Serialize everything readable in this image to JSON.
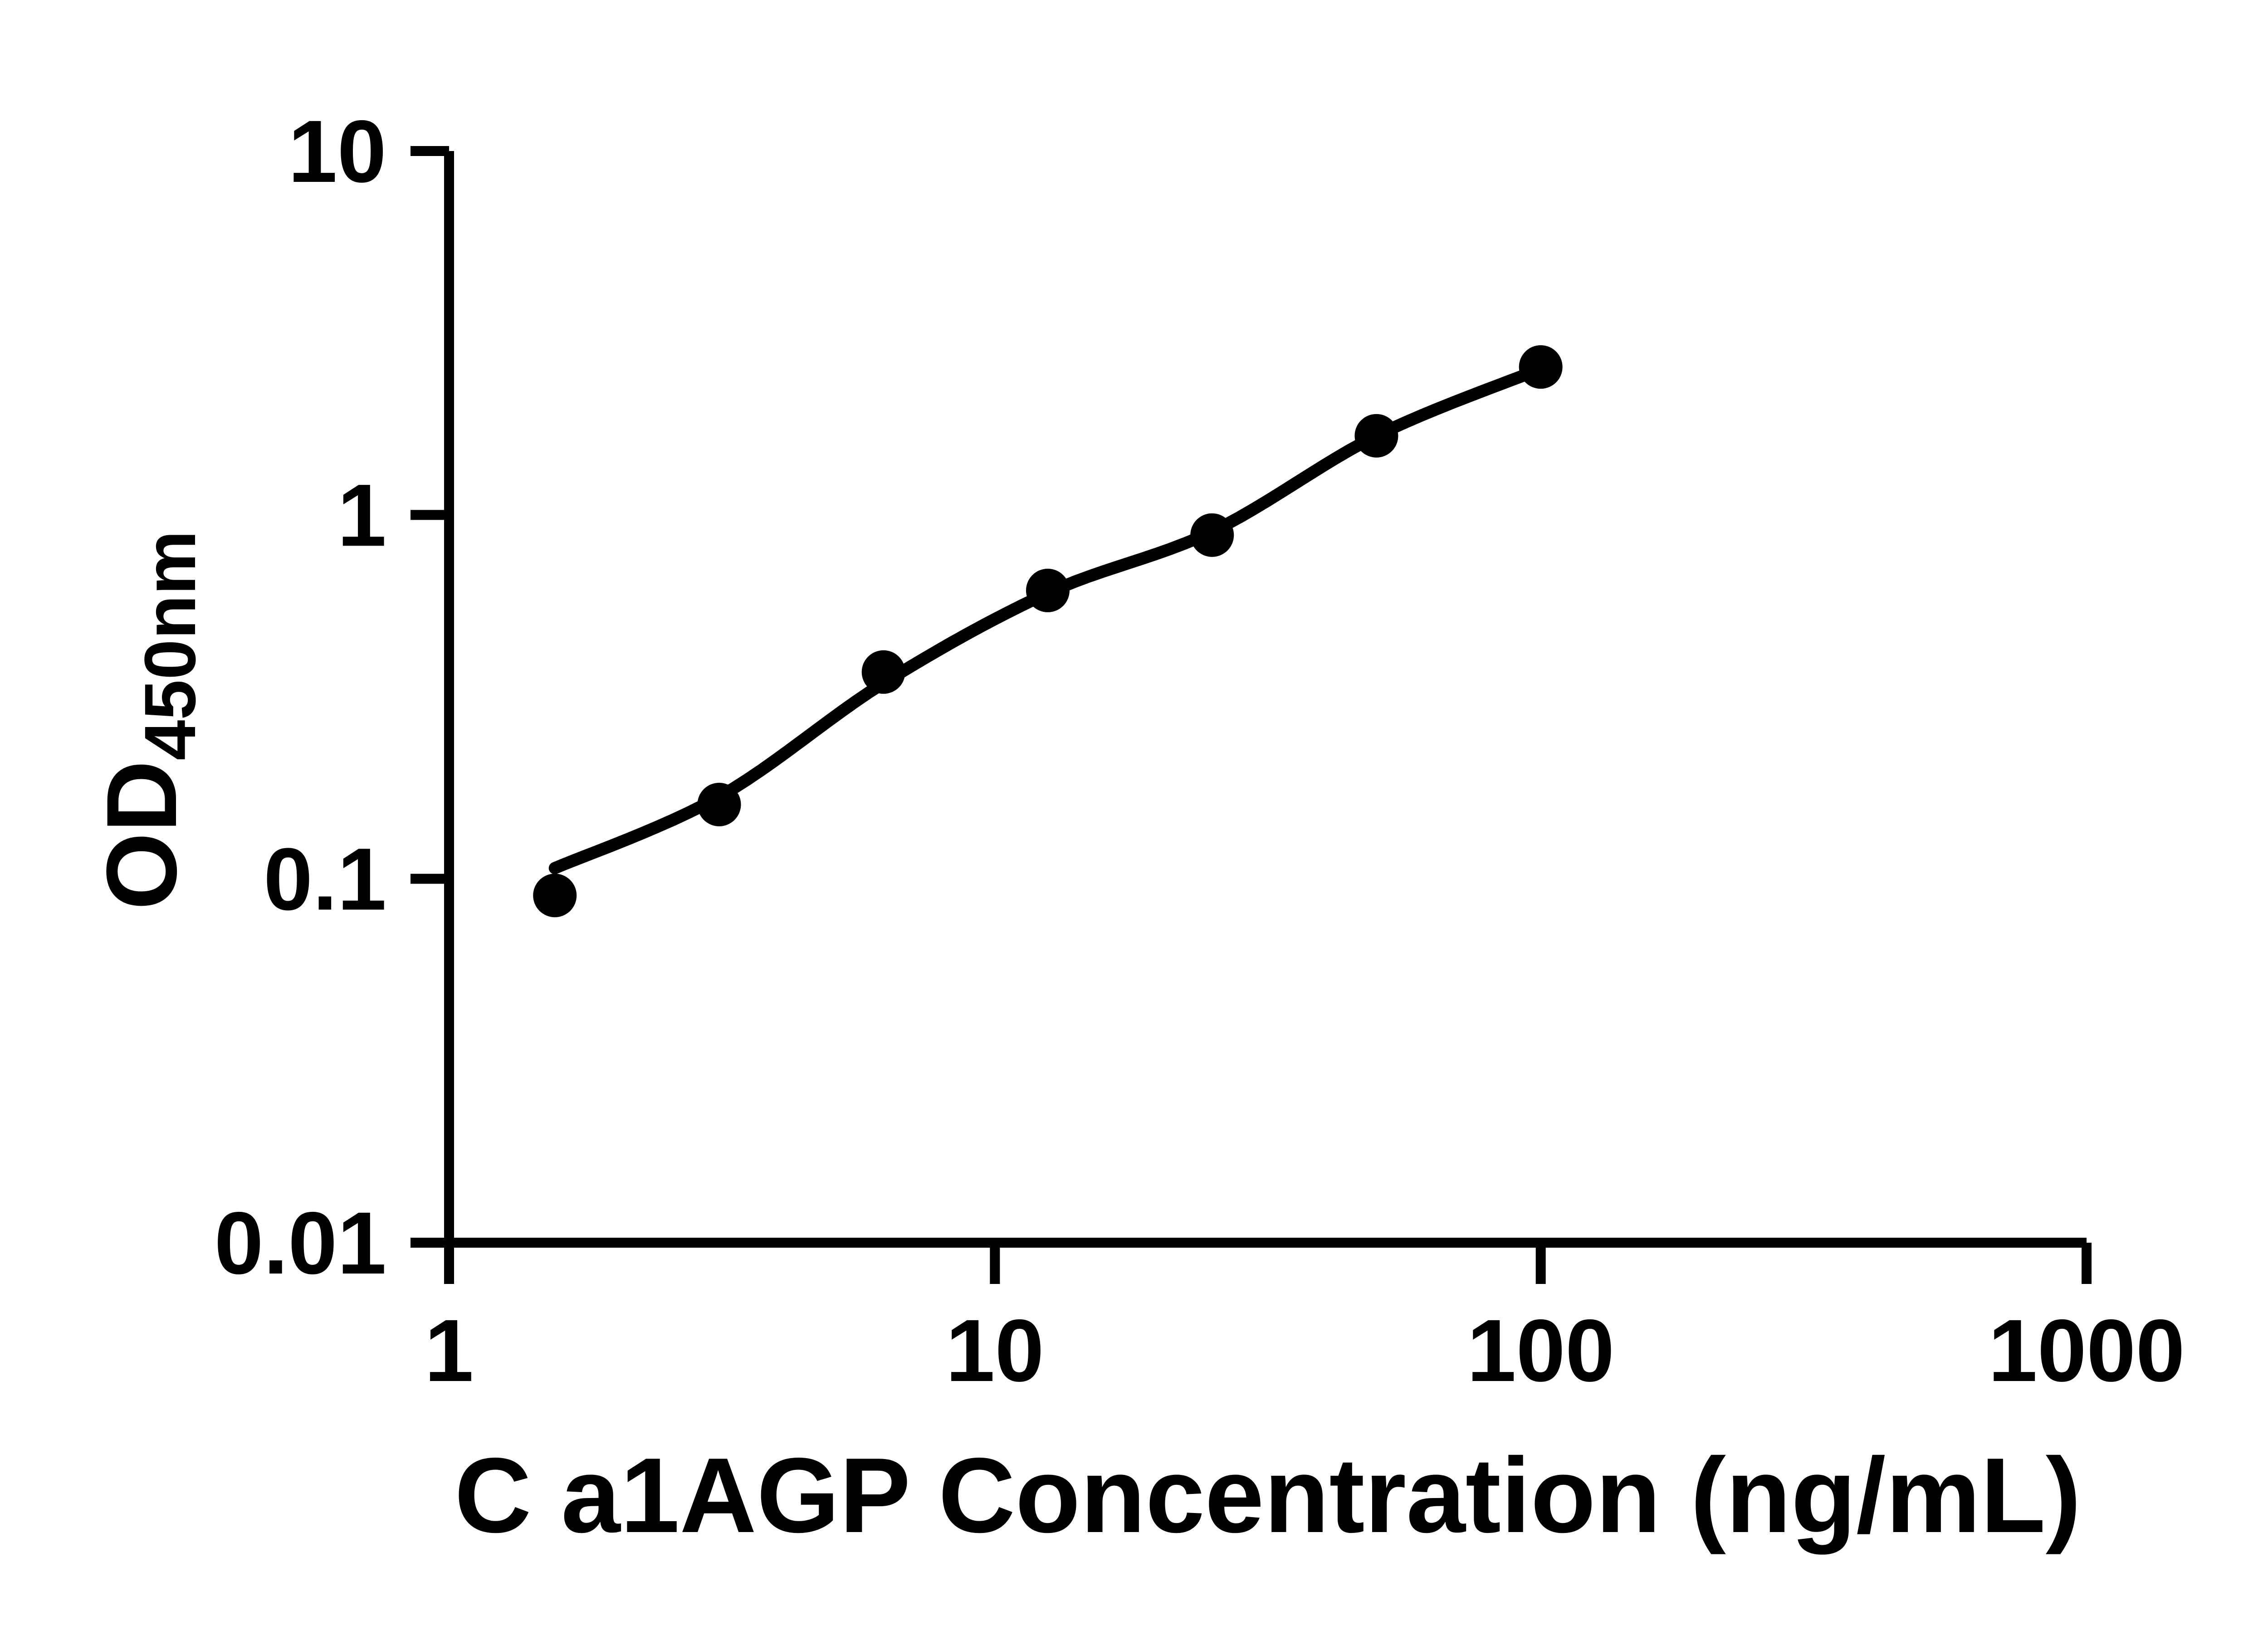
{
  "chart_data": {
    "type": "scatter",
    "title": "",
    "xlabel": "C a1AGP Concentration (ng/mL)",
    "ylabel_main": "OD",
    "ylabel_sub": "450nm",
    "x_scale": "log",
    "y_scale": "log",
    "xlim": [
      1,
      1000
    ],
    "ylim": [
      0.01,
      10
    ],
    "x_ticks": [
      1,
      10,
      100,
      1000
    ],
    "x_tick_labels": [
      "1",
      "10",
      "100",
      "1000"
    ],
    "y_ticks": [
      10,
      1,
      0.1,
      0.01
    ],
    "y_tick_labels": [
      "10",
      "1",
      "0.1",
      "0.01"
    ],
    "grid": false,
    "legend": "none",
    "series": [
      {
        "name": "standard-curve-points",
        "x": [
          1.5625,
          3.125,
          6.25,
          12.5,
          25,
          50,
          100
        ],
        "y": [
          0.09,
          0.16,
          0.37,
          0.62,
          0.88,
          1.65,
          2.55
        ]
      }
    ],
    "trend_line": {
      "name": "fitted-curve",
      "points": [
        [
          1.5625,
          0.107
        ],
        [
          3.125,
          0.168
        ],
        [
          6.25,
          0.345
        ],
        [
          12.5,
          0.61
        ],
        [
          25,
          0.9
        ],
        [
          50,
          1.65
        ],
        [
          100,
          2.52
        ]
      ]
    },
    "colors": {
      "background": "#ffffff",
      "axis": "#000000",
      "marker": "#000000",
      "line": "#000000",
      "text": "#000000"
    }
  }
}
